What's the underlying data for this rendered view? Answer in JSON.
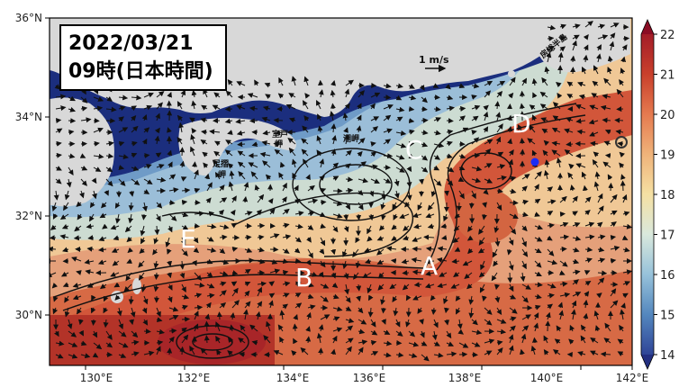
{
  "title": {
    "date": "2022/03/21",
    "time": "09時(日本時間)"
  },
  "scale": {
    "label": "1 m/s"
  },
  "lat_ticks": [
    "36°N",
    "34°N",
    "32°N",
    "30°N"
  ],
  "lon_ticks": [
    "130°E",
    "132°E",
    "134°E",
    "136°E",
    "138°E",
    "140°E",
    "142°E"
  ],
  "places": [
    "足摺岬",
    "室戸岬",
    "潮岬",
    "房総半島"
  ],
  "regions": [
    "A",
    "B",
    "C",
    "D",
    "E"
  ],
  "colorbar": {
    "ticks": [
      "22",
      "21",
      "20",
      "19",
      "18",
      "17",
      "16",
      "15",
      "14"
    ],
    "colors": [
      "#8b0d24",
      "#c3392a",
      "#e2714d",
      "#eead73",
      "#f3dc9c",
      "#dce8d4",
      "#9ec6d9",
      "#5a8ec0",
      "#3a5aa3",
      "#232f80"
    ]
  },
  "marker": {
    "color": "#1c2cf5"
  },
  "colors": {
    "land": "#d8d8d8",
    "shelf": "#1b2e7e"
  }
}
